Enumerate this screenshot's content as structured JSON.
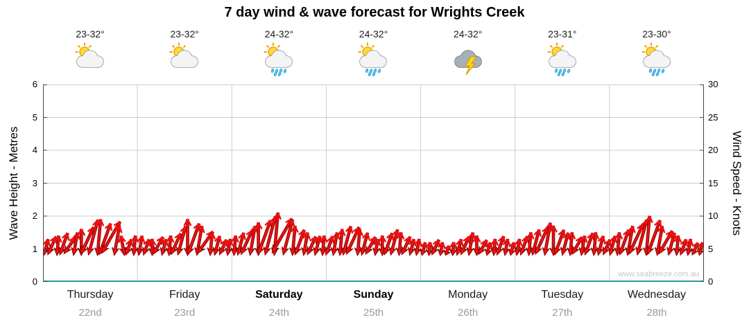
{
  "title": "7 day wind & wave forecast for Wrights Creek",
  "watermark": "www.seabreeze.com.au",
  "axes": {
    "left_label": "Wave Height - Metres",
    "right_label": "Wind Speed - Knots",
    "left_ticks": [
      0,
      1,
      2,
      3,
      4,
      5,
      6
    ],
    "right_ticks": [
      0,
      5,
      10,
      15,
      20,
      25,
      30
    ]
  },
  "colors": {
    "arrow_fill": "#ee1111",
    "arrow_stroke": "#8b0000",
    "grid": "#cccccc",
    "axis": "#444444",
    "baseline": "#2e9b9b",
    "sun": "#FFD93B",
    "sun_stroke": "#F0A500",
    "rain": "#55C0EE",
    "bolt": "#FFD417"
  },
  "chart_data": {
    "type": "wind-arrow-series",
    "title": "7 day wind & wave forecast for Wrights Creek",
    "left_axis": {
      "label": "Wave Height - Metres",
      "range": [
        0,
        6
      ]
    },
    "right_axis": {
      "label": "Wind Speed - Knots",
      "range": [
        0,
        30
      ]
    },
    "wind_unit": "knots",
    "arrow_tail_knots": 4,
    "days": [
      {
        "name": "Thursday",
        "date": "22nd",
        "temp": "23-32°",
        "icon": "partly-cloudy",
        "bold": false,
        "wind_knots": [
          6.5,
          7,
          7,
          7.5,
          7,
          7.5,
          8,
          8.5,
          9.5,
          9.5,
          9,
          9.5,
          8.5,
          7,
          6.5,
          7
        ],
        "wind_dir_deg": [
          195,
          205,
          185,
          200,
          215,
          190,
          180,
          205,
          195,
          185,
          200,
          210,
          190,
          170,
          200,
          185
        ]
      },
      {
        "name": "Friday",
        "date": "23rd",
        "temp": "23-32°",
        "icon": "partly-cloudy",
        "bold": false,
        "wind_knots": [
          7,
          6.5,
          6.5,
          7,
          6.5,
          7,
          7.5,
          8.5,
          9.5,
          9,
          8.5,
          8,
          7.5,
          7,
          6.5,
          6.5
        ],
        "wind_dir_deg": [
          190,
          200,
          180,
          210,
          195,
          185,
          205,
          195,
          180,
          200,
          190,
          215,
          185,
          195,
          205,
          190
        ]
      },
      {
        "name": "Saturday",
        "date": "24th",
        "temp": "24-32°",
        "icon": "sun-showers",
        "bold": true,
        "wind_knots": [
          7,
          7.5,
          8,
          8.5,
          9,
          9.5,
          10,
          10.5,
          10,
          9.5,
          8.5,
          8,
          7.5,
          7,
          7,
          7
        ],
        "wind_dir_deg": [
          185,
          195,
          205,
          190,
          180,
          200,
          195,
          185,
          210,
          195,
          185,
          200,
          190,
          205,
          195,
          185
        ]
      },
      {
        "name": "Sunday",
        "date": "25th",
        "temp": "24-32°",
        "icon": "sun-showers",
        "bold": true,
        "wind_knots": [
          7,
          7.5,
          8,
          8.5,
          8.5,
          8,
          7.5,
          7,
          6.5,
          7,
          7.5,
          8,
          7.5,
          7,
          6.5,
          6.5
        ],
        "wind_dir_deg": [
          200,
          190,
          185,
          195,
          205,
          185,
          195,
          210,
          190,
          180,
          200,
          195,
          185,
          205,
          195,
          190
        ]
      },
      {
        "name": "Monday",
        "date": "26th",
        "temp": "24-32°",
        "icon": "thunderstorm",
        "bold": false,
        "wind_knots": [
          6,
          6,
          6.5,
          6,
          5.5,
          6,
          6.5,
          7,
          7.5,
          7,
          6.5,
          6,
          6.5,
          7,
          6.5,
          6
        ],
        "wind_dir_deg": [
          195,
          185,
          205,
          190,
          200,
          185,
          195,
          205,
          190,
          180,
          210,
          195,
          185,
          200,
          190,
          195
        ]
      },
      {
        "name": "Tuesday",
        "date": "27th",
        "temp": "23-31°",
        "icon": "sun-showers",
        "bold": false,
        "wind_knots": [
          6.5,
          7,
          7.5,
          8,
          8.5,
          9,
          8.5,
          8,
          7.5,
          7.5,
          7,
          7,
          7.5,
          7.5,
          7,
          6.5
        ],
        "wind_dir_deg": [
          190,
          200,
          185,
          195,
          205,
          190,
          180,
          200,
          195,
          185,
          210,
          190,
          200,
          185,
          195,
          205
        ]
      },
      {
        "name": "Wednesday",
        "date": "28th",
        "temp": "23-30°",
        "icon": "sun-showers",
        "bold": false,
        "wind_knots": [
          7,
          7.5,
          8,
          8.5,
          9,
          9.5,
          10,
          9.5,
          8.5,
          8,
          7.5,
          7,
          6.5,
          6.5,
          6,
          6
        ],
        "wind_dir_deg": [
          195,
          185,
          200,
          190,
          205,
          195,
          185,
          200,
          190,
          210,
          195,
          185,
          200,
          190,
          205,
          195
        ]
      }
    ]
  }
}
